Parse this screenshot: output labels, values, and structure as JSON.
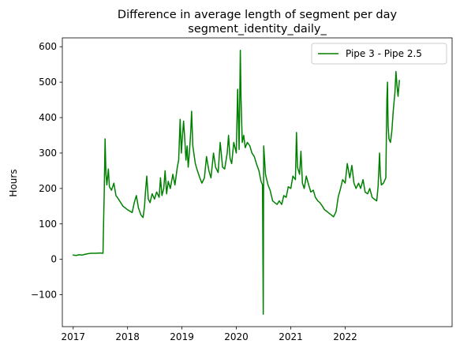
{
  "chart_data": {
    "type": "line",
    "title": "Difference in average length of segment per day",
    "subtitle": "segment_identity_daily_",
    "xlabel": "",
    "ylabel": "Hours",
    "x_range": [
      "2016-10-20",
      "2023-12-20"
    ],
    "ylim": [
      -190,
      625
    ],
    "x_ticks": [
      "2017",
      "2018",
      "2019",
      "2020",
      "2021",
      "2022"
    ],
    "y_ticks": [
      -100,
      0,
      100,
      200,
      300,
      400,
      500,
      600
    ],
    "grid": false,
    "legend": {
      "location": "upper right"
    },
    "series": [
      {
        "name": "Pipe 3 - Pipe 2.5",
        "color": "#008000",
        "points": [
          [
            "2017-01-01",
            12
          ],
          [
            "2017-01-20",
            11
          ],
          [
            "2017-02-10",
            13
          ],
          [
            "2017-03-01",
            12
          ],
          [
            "2017-03-20",
            14
          ],
          [
            "2017-04-10",
            16
          ],
          [
            "2017-05-01",
            17
          ],
          [
            "2017-06-01",
            17
          ],
          [
            "2017-07-01",
            18
          ],
          [
            "2017-07-20",
            17
          ],
          [
            "2017-07-25",
            125
          ],
          [
            "2017-07-28",
            180
          ],
          [
            "2017-07-31",
            260
          ],
          [
            "2017-08-03",
            340
          ],
          [
            "2017-08-06",
            290
          ],
          [
            "2017-08-09",
            240
          ],
          [
            "2017-08-15",
            210
          ],
          [
            "2017-08-25",
            255
          ],
          [
            "2017-09-01",
            205
          ],
          [
            "2017-09-15",
            195
          ],
          [
            "2017-10-01",
            215
          ],
          [
            "2017-10-15",
            180
          ],
          [
            "2017-11-01",
            170
          ],
          [
            "2017-12-01",
            150
          ],
          [
            "2018-01-01",
            140
          ],
          [
            "2018-02-01",
            132
          ],
          [
            "2018-02-15",
            160
          ],
          [
            "2018-03-01",
            180
          ],
          [
            "2018-03-15",
            145
          ],
          [
            "2018-04-01",
            125
          ],
          [
            "2018-04-15",
            118
          ],
          [
            "2018-04-25",
            150
          ],
          [
            "2018-05-01",
            190
          ],
          [
            "2018-05-10",
            235
          ],
          [
            "2018-05-20",
            170
          ],
          [
            "2018-06-01",
            160
          ],
          [
            "2018-06-15",
            185
          ],
          [
            "2018-07-01",
            170
          ],
          [
            "2018-07-15",
            190
          ],
          [
            "2018-08-01",
            175
          ],
          [
            "2018-08-10",
            230
          ],
          [
            "2018-08-20",
            180
          ],
          [
            "2018-09-01",
            200
          ],
          [
            "2018-09-10",
            250
          ],
          [
            "2018-09-20",
            185
          ],
          [
            "2018-10-01",
            220
          ],
          [
            "2018-10-15",
            200
          ],
          [
            "2018-11-01",
            240
          ],
          [
            "2018-11-15",
            210
          ],
          [
            "2018-12-01",
            260
          ],
          [
            "2018-12-10",
            280
          ],
          [
            "2018-12-20",
            395
          ],
          [
            "2018-12-28",
            300
          ],
          [
            "2019-01-05",
            350
          ],
          [
            "2019-01-12",
            390
          ],
          [
            "2019-01-20",
            340
          ],
          [
            "2019-01-28",
            280
          ],
          [
            "2019-02-05",
            320
          ],
          [
            "2019-02-12",
            260
          ],
          [
            "2019-02-20",
            300
          ],
          [
            "2019-03-01",
            360
          ],
          [
            "2019-03-07",
            418
          ],
          [
            "2019-03-15",
            320
          ],
          [
            "2019-04-01",
            270
          ],
          [
            "2019-04-15",
            250
          ],
          [
            "2019-05-01",
            230
          ],
          [
            "2019-05-15",
            215
          ],
          [
            "2019-06-01",
            230
          ],
          [
            "2019-06-15",
            290
          ],
          [
            "2019-07-01",
            250
          ],
          [
            "2019-07-15",
            230
          ],
          [
            "2019-08-01",
            300
          ],
          [
            "2019-08-15",
            260
          ],
          [
            "2019-09-01",
            245
          ],
          [
            "2019-09-15",
            330
          ],
          [
            "2019-10-01",
            260
          ],
          [
            "2019-10-15",
            255
          ],
          [
            "2019-11-01",
            300
          ],
          [
            "2019-11-10",
            350
          ],
          [
            "2019-11-20",
            285
          ],
          [
            "2019-12-01",
            270
          ],
          [
            "2019-12-15",
            330
          ],
          [
            "2020-01-01",
            300
          ],
          [
            "2020-01-10",
            480
          ],
          [
            "2020-01-15",
            400
          ],
          [
            "2020-01-20",
            310
          ],
          [
            "2020-01-28",
            590
          ],
          [
            "2020-02-02",
            450
          ],
          [
            "2020-02-10",
            330
          ],
          [
            "2020-02-20",
            350
          ],
          [
            "2020-03-01",
            315
          ],
          [
            "2020-03-15",
            330
          ],
          [
            "2020-04-01",
            320
          ],
          [
            "2020-04-15",
            300
          ],
          [
            "2020-05-01",
            290
          ],
          [
            "2020-05-15",
            270
          ],
          [
            "2020-06-01",
            250
          ],
          [
            "2020-06-15",
            220
          ],
          [
            "2020-06-25",
            210
          ],
          [
            "2020-06-30",
            -155
          ],
          [
            "2020-07-03",
            320
          ],
          [
            "2020-07-15",
            240
          ],
          [
            "2020-08-01",
            210
          ],
          [
            "2020-08-15",
            195
          ],
          [
            "2020-09-01",
            165
          ],
          [
            "2020-09-15",
            160
          ],
          [
            "2020-10-01",
            155
          ],
          [
            "2020-10-15",
            165
          ],
          [
            "2020-11-01",
            155
          ],
          [
            "2020-11-15",
            180
          ],
          [
            "2020-12-01",
            175
          ],
          [
            "2020-12-15",
            205
          ],
          [
            "2021-01-01",
            200
          ],
          [
            "2021-01-15",
            235
          ],
          [
            "2021-02-01",
            225
          ],
          [
            "2021-02-08",
            358
          ],
          [
            "2021-02-15",
            260
          ],
          [
            "2021-03-01",
            240
          ],
          [
            "2021-03-10",
            305
          ],
          [
            "2021-03-20",
            215
          ],
          [
            "2021-04-01",
            200
          ],
          [
            "2021-04-15",
            235
          ],
          [
            "2021-05-01",
            210
          ],
          [
            "2021-05-15",
            190
          ],
          [
            "2021-06-01",
            195
          ],
          [
            "2021-06-15",
            175
          ],
          [
            "2021-07-01",
            165
          ],
          [
            "2021-07-15",
            160
          ],
          [
            "2021-08-01",
            150
          ],
          [
            "2021-08-15",
            140
          ],
          [
            "2021-09-01",
            135
          ],
          [
            "2021-09-15",
            130
          ],
          [
            "2021-10-01",
            125
          ],
          [
            "2021-10-15",
            120
          ],
          [
            "2021-11-01",
            135
          ],
          [
            "2021-11-15",
            175
          ],
          [
            "2021-12-01",
            200
          ],
          [
            "2021-12-15",
            225
          ],
          [
            "2022-01-01",
            215
          ],
          [
            "2022-01-15",
            270
          ],
          [
            "2022-02-01",
            230
          ],
          [
            "2022-02-15",
            265
          ],
          [
            "2022-03-01",
            215
          ],
          [
            "2022-03-15",
            200
          ],
          [
            "2022-04-01",
            215
          ],
          [
            "2022-04-15",
            200
          ],
          [
            "2022-05-01",
            225
          ],
          [
            "2022-05-15",
            190
          ],
          [
            "2022-06-01",
            185
          ],
          [
            "2022-06-15",
            200
          ],
          [
            "2022-07-01",
            175
          ],
          [
            "2022-07-15",
            170
          ],
          [
            "2022-08-01",
            165
          ],
          [
            "2022-08-10",
            205
          ],
          [
            "2022-08-20",
            300
          ],
          [
            "2022-08-25",
            240
          ],
          [
            "2022-09-01",
            210
          ],
          [
            "2022-09-15",
            215
          ],
          [
            "2022-10-01",
            230
          ],
          [
            "2022-10-08",
            450
          ],
          [
            "2022-10-12",
            500
          ],
          [
            "2022-10-16",
            380
          ],
          [
            "2022-10-22",
            340
          ],
          [
            "2022-11-01",
            330
          ],
          [
            "2022-11-10",
            360
          ],
          [
            "2022-11-20",
            420
          ],
          [
            "2022-12-01",
            470
          ],
          [
            "2022-12-08",
            530
          ],
          [
            "2022-12-15",
            490
          ],
          [
            "2022-12-22",
            460
          ],
          [
            "2022-12-31",
            505
          ]
        ]
      }
    ]
  }
}
